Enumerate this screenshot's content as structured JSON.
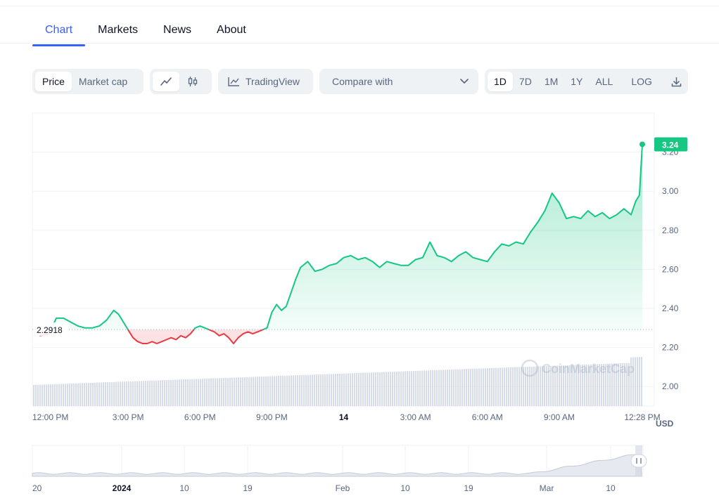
{
  "tabs": [
    {
      "label": "Chart",
      "active": true
    },
    {
      "label": "Markets",
      "active": false
    },
    {
      "label": "News",
      "active": false
    },
    {
      "label": "About",
      "active": false
    }
  ],
  "toolbar": {
    "metric": [
      "Price",
      "Market cap"
    ],
    "metric_active": "Price",
    "chart_type_icons": [
      "line-chart-icon",
      "candlestick-icon"
    ],
    "tradingview_label": "TradingView",
    "compare_label": "Compare with",
    "ranges": [
      "1D",
      "7D",
      "1M",
      "1Y",
      "ALL"
    ],
    "range_active": "1D",
    "log_label": "LOG",
    "download_icon": "download-icon"
  },
  "chart_data": {
    "type": "line",
    "currency": "USD",
    "baseline_label": "2.2918",
    "baseline": 2.2918,
    "last_price_label": "3.24",
    "watermark": "CoinMarketCap",
    "ylim": [
      1.9,
      3.4
    ],
    "y_ticks": [
      "2.00",
      "2.20",
      "2.40",
      "2.60",
      "2.80",
      "3.00",
      "3.20"
    ],
    "x_ticks": [
      "12:00 PM",
      "3:00 PM",
      "6:00 PM",
      "9:00 PM",
      "14",
      "3:00 AM",
      "6:00 AM",
      "9:00 AM",
      "12:28 PM"
    ],
    "x_tick_hours": [
      0,
      3,
      6,
      9,
      12,
      15,
      18,
      21,
      24.47
    ],
    "colors": {
      "up": "#16c784",
      "down": "#ea3943",
      "volume": "#cfd6e4"
    },
    "series": [
      {
        "x": [
          -0.7,
          -0.3,
          0,
          0.3,
          0.6,
          0.9,
          1.2,
          1.5,
          1.8,
          2.1,
          2.4,
          2.6,
          2.8,
          3.0,
          3.2,
          3.4,
          3.6,
          3.8,
          4.0,
          4.2,
          4.4,
          4.6,
          4.8,
          5.0,
          5.2,
          5.4,
          5.6,
          5.8,
          6.0,
          6.2,
          6.4,
          6.6,
          6.8,
          7.0,
          7.2,
          7.4,
          7.6,
          7.8,
          8.0,
          8.2,
          8.4,
          8.6,
          8.8,
          9.0,
          9.2,
          9.4,
          9.6,
          9.8,
          10.0,
          10.2,
          10.5,
          10.8,
          11.1,
          11.4,
          11.7,
          12.0,
          12.3,
          12.6,
          12.9,
          13.2,
          13.5,
          13.8,
          14.1,
          14.4,
          14.7,
          15.0,
          15.3,
          15.6,
          15.9,
          16.2,
          16.5,
          16.8,
          17.1,
          17.4,
          17.7,
          18.0,
          18.3,
          18.6,
          18.9,
          19.2,
          19.5,
          19.8,
          20.1,
          20.4,
          20.7,
          21.0,
          21.3,
          21.6,
          21.9,
          22.2,
          22.5,
          22.8,
          23.1,
          23.4,
          23.7,
          24.0,
          24.2,
          24.35,
          24.47
        ],
        "y": [
          2.26,
          2.27,
          2.35,
          2.35,
          2.33,
          2.31,
          2.3,
          2.3,
          2.31,
          2.34,
          2.39,
          2.37,
          2.33,
          2.29,
          2.25,
          2.23,
          2.22,
          2.22,
          2.23,
          2.22,
          2.23,
          2.24,
          2.25,
          2.24,
          2.26,
          2.25,
          2.27,
          2.3,
          2.31,
          2.3,
          2.29,
          2.28,
          2.26,
          2.27,
          2.25,
          2.22,
          2.25,
          2.27,
          2.28,
          2.27,
          2.28,
          2.29,
          2.3,
          2.38,
          2.42,
          2.39,
          2.41,
          2.48,
          2.55,
          2.61,
          2.64,
          2.59,
          2.6,
          2.62,
          2.63,
          2.66,
          2.67,
          2.65,
          2.66,
          2.64,
          2.61,
          2.64,
          2.63,
          2.62,
          2.62,
          2.65,
          2.66,
          2.74,
          2.67,
          2.66,
          2.64,
          2.67,
          2.69,
          2.66,
          2.65,
          2.64,
          2.69,
          2.73,
          2.72,
          2.74,
          2.73,
          2.79,
          2.84,
          2.9,
          2.99,
          2.94,
          2.86,
          2.87,
          2.86,
          2.9,
          2.87,
          2.89,
          2.86,
          2.88,
          2.91,
          2.88,
          2.95,
          2.98,
          3.24
        ]
      }
    ],
    "navigator_ticks": [
      "20",
      "2024",
      "10",
      "19",
      "Feb",
      "10",
      "19",
      "Mar",
      "10"
    ]
  }
}
